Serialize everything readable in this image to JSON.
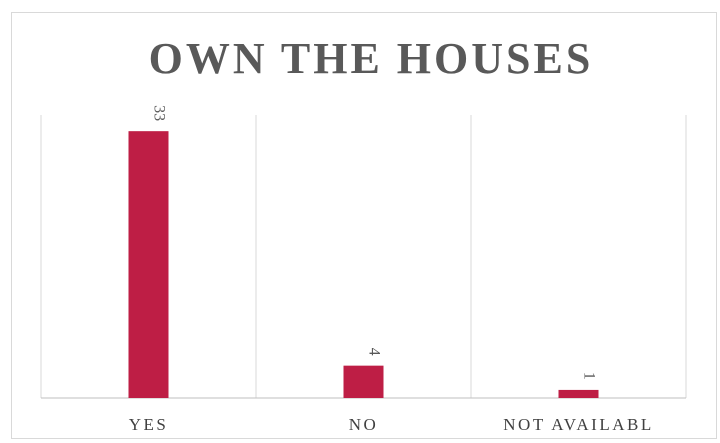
{
  "chart_data": {
    "type": "bar",
    "title": "OWN THE HOUSES",
    "categories": [
      "YES",
      "NO",
      "NOT AVAILABL"
    ],
    "values": [
      33,
      4,
      1
    ],
    "data_labels": [
      "33",
      "4",
      "1"
    ],
    "xlabel": "",
    "ylabel": "",
    "ylim": [
      0,
      35
    ],
    "grid": "vertical separators",
    "legend": "none",
    "bar_color": "#be1e45",
    "data_label_orientation": "rotated"
  }
}
